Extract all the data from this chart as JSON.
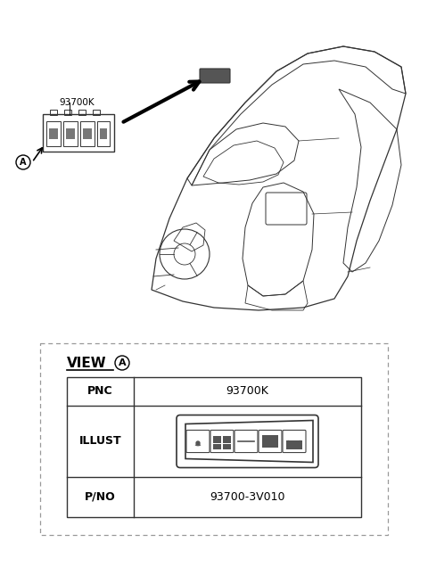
{
  "bg_color": "#ffffff",
  "part_number_label": "93700K",
  "view_label": "VIEW",
  "circle_label": "A",
  "pnc_label": "PNC",
  "pnc_value": "93700K",
  "illust_label": "ILLUST",
  "pno_label": "P/NO",
  "pno_value": "93700-3V010",
  "line_color": "#333333",
  "dash_color": "#888888"
}
